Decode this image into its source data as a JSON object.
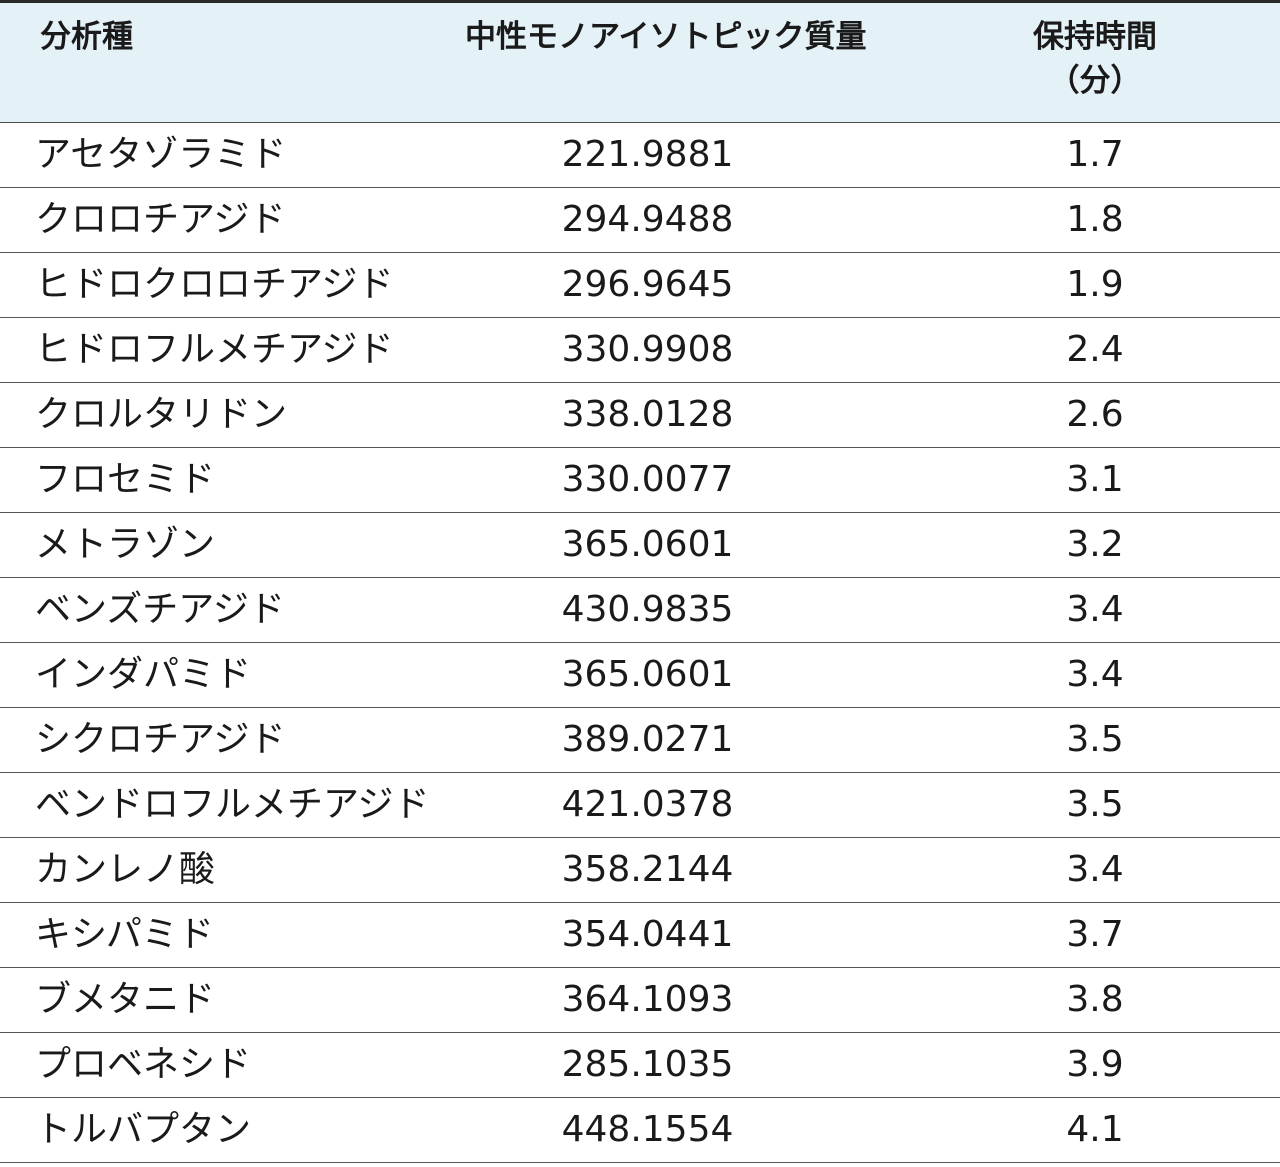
{
  "header": {
    "analyte": "分析種",
    "mass": "中性モノアイソトピック質量",
    "rt_line1": "保持時間",
    "rt_line2": "（分）"
  },
  "rows": [
    {
      "name": "アセタゾラミド",
      "mass": "221.9881",
      "rt": "1.7"
    },
    {
      "name": "クロロチアジド",
      "mass": "294.9488",
      "rt": "1.8"
    },
    {
      "name": "ヒドロクロロチアジド",
      "mass": "296.9645",
      "rt": "1.9"
    },
    {
      "name": "ヒドロフルメチアジド",
      "mass": "330.9908",
      "rt": "2.4"
    },
    {
      "name": "クロルタリドン",
      "mass": "338.0128",
      "rt": "2.6"
    },
    {
      "name": "フロセミド",
      "mass": "330.0077",
      "rt": "3.1"
    },
    {
      "name": "メトラゾン",
      "mass": "365.0601",
      "rt": "3.2"
    },
    {
      "name": "ベンズチアジド",
      "mass": "430.9835",
      "rt": "3.4"
    },
    {
      "name": "インダパミド",
      "mass": "365.0601",
      "rt": "3.4"
    },
    {
      "name": "シクロチアジド",
      "mass": "389.0271",
      "rt": "3.5"
    },
    {
      "name": "ベンドロフルメチアジド",
      "mass": "421.0378",
      "rt": "3.5"
    },
    {
      "name": "カンレノ酸",
      "mass": "358.2144",
      "rt": "3.4"
    },
    {
      "name": "キシパミド",
      "mass": "354.0441",
      "rt": "3.7"
    },
    {
      "name": "ブメタニド",
      "mass": "364.1093",
      "rt": "3.8"
    },
    {
      "name": "プロベネシド",
      "mass": "285.1035",
      "rt": "3.9"
    },
    {
      "name": "トルバプタン",
      "mass": "448.1554",
      "rt": "4.1"
    }
  ],
  "colors": {
    "header_bg": "#e4f2f8",
    "rule": "#555555",
    "text": "#1a1a1a"
  }
}
